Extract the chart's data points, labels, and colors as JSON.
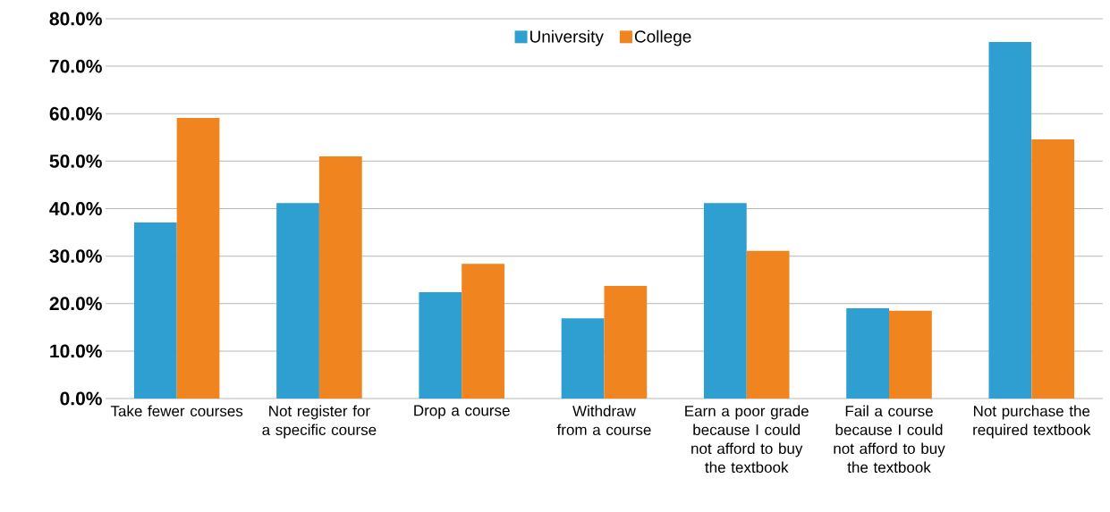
{
  "chart_data": {
    "type": "bar",
    "categories": [
      "Take fewer courses",
      "Not register for a specific course",
      "Drop a course",
      "Withdraw from a course",
      "Earn a poor grade because I could not afford to buy the textbook",
      "Fail a course because I could not afford to buy the textbook",
      "Not purchase the required textbook"
    ],
    "series": [
      {
        "name": "University",
        "color": "#2e9fd0",
        "values": [
          37.1,
          41.2,
          22.4,
          16.9,
          41.2,
          19.0,
          75.1
        ]
      },
      {
        "name": "College",
        "color": "#f0851f",
        "values": [
          59.1,
          51.0,
          28.4,
          23.7,
          31.1,
          18.5,
          54.6
        ]
      }
    ],
    "ylim": [
      0,
      80
    ],
    "yticks": [
      {
        "value": 0,
        "label": "0.0%"
      },
      {
        "value": 10,
        "label": "10.0%"
      },
      {
        "value": 20,
        "label": "20.0%"
      },
      {
        "value": 30,
        "label": "30.0%"
      },
      {
        "value": 40,
        "label": "40.0%"
      },
      {
        "value": 50,
        "label": "50.0%"
      },
      {
        "value": 60,
        "label": "60.0%"
      },
      {
        "value": 70,
        "label": "70.0%"
      },
      {
        "value": 80,
        "label": "80.0%"
      }
    ],
    "grid": "y",
    "legend": "top"
  }
}
